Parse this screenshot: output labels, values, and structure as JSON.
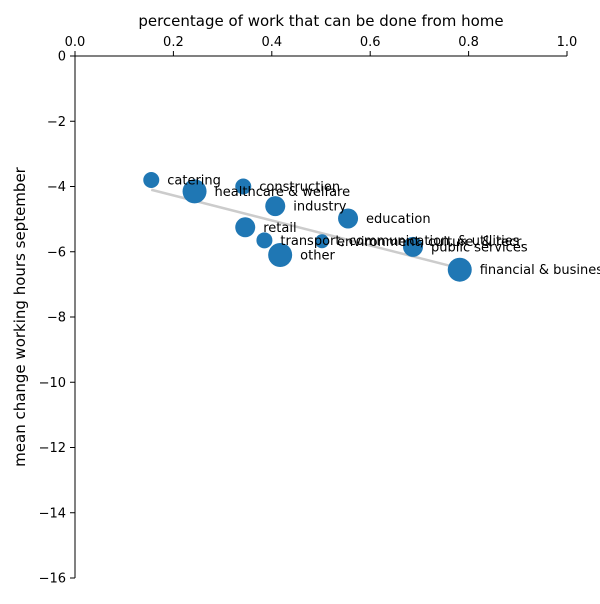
{
  "chart_data": {
    "type": "scatter",
    "xlabel": "percentage of work that can be done from home",
    "ylabel": "mean change working hours september",
    "xlim": [
      0,
      1
    ],
    "ylim": [
      -16,
      0
    ],
    "x_ticks": [
      "0.0",
      "0.2",
      "0.4",
      "0.6",
      "0.8",
      "1.0"
    ],
    "x_tick_values": [
      0,
      0.2,
      0.4,
      0.6,
      0.8,
      1.0
    ],
    "y_ticks": [
      "0",
      "−2",
      "−4",
      "−6",
      "−8",
      "−10",
      "−12",
      "−14",
      "−16"
    ],
    "y_tick_values": [
      0,
      -2,
      -4,
      -6,
      -8,
      -10,
      -12,
      -14,
      -16
    ],
    "x_axis_position": "top",
    "grid": false,
    "marker_color": "#1f77b4",
    "trend_color": "#cccccc",
    "trend_line": {
      "x": [
        0.155,
        0.78
      ],
      "y": [
        -4.1,
        -6.5
      ]
    },
    "points": [
      {
        "label": "catering",
        "x": 0.155,
        "y": -3.8,
        "size": "small"
      },
      {
        "label": "healthcare & welfare",
        "x": 0.243,
        "y": -4.15,
        "size": "large"
      },
      {
        "label": "construction",
        "x": 0.342,
        "y": -4.0,
        "size": "small"
      },
      {
        "label": "industry",
        "x": 0.407,
        "y": -4.6,
        "size": "medium"
      },
      {
        "label": "education",
        "x": 0.555,
        "y": -4.98,
        "size": "medium"
      },
      {
        "label": "retail",
        "x": 0.346,
        "y": -5.25,
        "size": "medium"
      },
      {
        "label": "transport, communication, & utilities",
        "x": 0.385,
        "y": -5.65,
        "size": "small"
      },
      {
        "label": "environment, culture, & recr.",
        "x": 0.502,
        "y": -5.68,
        "size": "tiny"
      },
      {
        "label": "other",
        "x": 0.417,
        "y": -6.1,
        "size": "large"
      },
      {
        "label": "public services",
        "x": 0.687,
        "y": -5.85,
        "size": "medium"
      },
      {
        "label": "financial & business services",
        "x": 0.782,
        "y": -6.55,
        "size": "large"
      }
    ],
    "size_scale": {
      "tiny": 7,
      "small": 8,
      "medium": 10,
      "large": 12
    }
  }
}
